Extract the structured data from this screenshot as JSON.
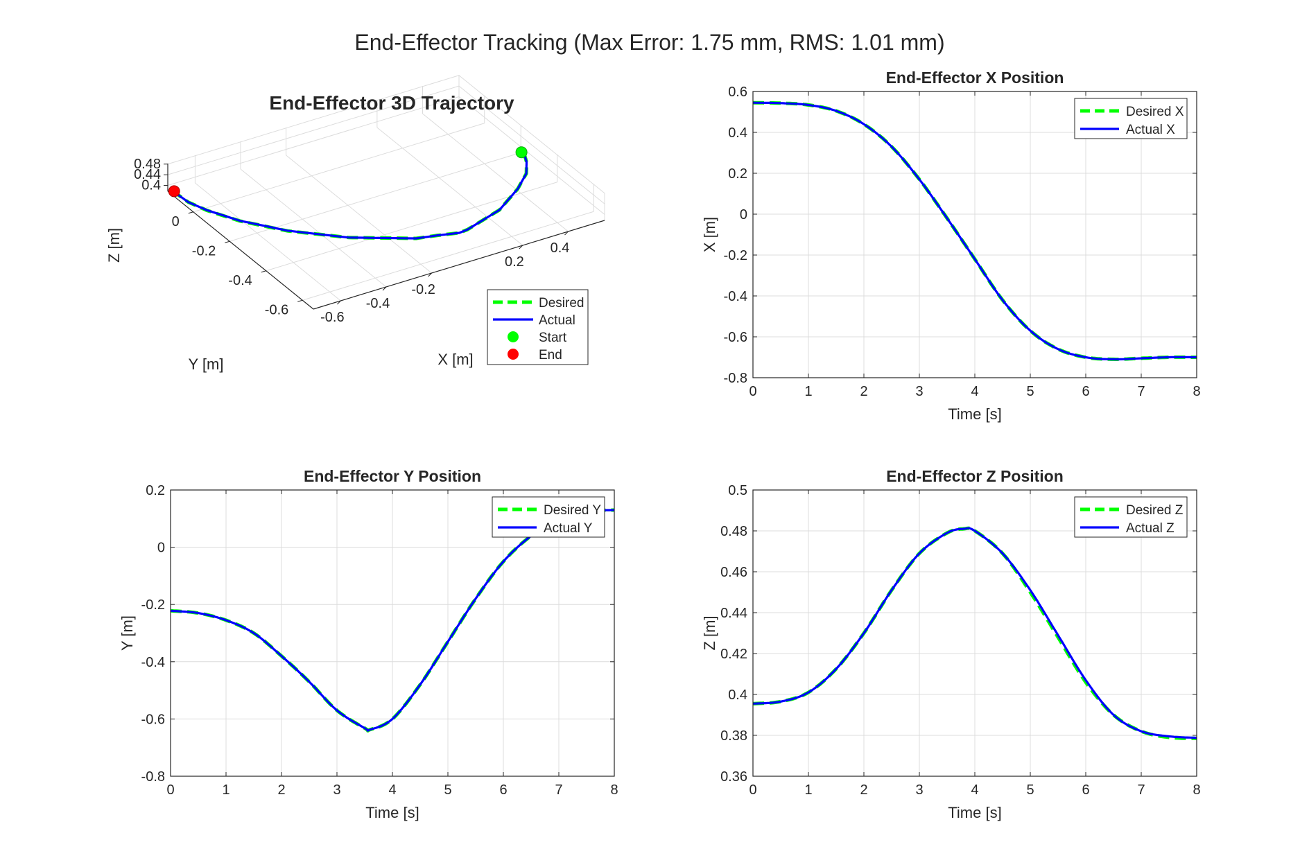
{
  "figure": {
    "suptitle": "End-Effector Tracking (Max Error: 1.75 mm, RMS: 1.01 mm)"
  },
  "colors": {
    "desired": "#00ff00",
    "actual": "#0000ff",
    "start": "#00ff00",
    "end": "#ff0000",
    "grid": "#dcdcdc",
    "axes": "#262626"
  },
  "chart_data": [
    {
      "id": "traj3d",
      "type": "line",
      "title": "End-Effector 3D Trajectory",
      "xlabel": "X [m]",
      "ylabel": "Y [m]",
      "zlabel": "Z [m]",
      "xlim": [
        -0.72,
        0.56
      ],
      "ylim": [
        -0.66,
        0.14
      ],
      "zlim": [
        0.378,
        0.482
      ],
      "xticks": [
        -0.6,
        -0.4,
        -0.2,
        0.2,
        0.4
      ],
      "xtick_labels": [
        "-0.6",
        "-0.4",
        "-0.2",
        "0.2",
        "0.4"
      ],
      "yticks": [
        -0.6,
        -0.4,
        -0.2,
        0
      ],
      "ytick_labels": [
        "-0.6",
        "-0.4",
        "-0.2",
        "0"
      ],
      "zticks": [
        0.4,
        0.44,
        0.48
      ],
      "ztick_labels": [
        "0.4",
        "0.44",
        "0.48"
      ],
      "grid": true,
      "legend": {
        "position": "bottom-right",
        "entries": [
          {
            "label": "Desired",
            "kind": "dashed-line",
            "color_key": "desired"
          },
          {
            "label": "Actual",
            "kind": "line",
            "color_key": "actual"
          },
          {
            "label": "Start",
            "kind": "marker",
            "color_key": "start"
          },
          {
            "label": "End",
            "kind": "marker",
            "color_key": "end"
          }
        ]
      }
    },
    {
      "id": "xpos",
      "type": "line",
      "title": "End-Effector X Position",
      "xlabel": "Time [s]",
      "ylabel": "X [m]",
      "xlim": [
        0,
        8
      ],
      "ylim": [
        -0.8,
        0.6
      ],
      "xticks": [
        0,
        1,
        2,
        3,
        4,
        5,
        6,
        7,
        8
      ],
      "xtick_labels": [
        "0",
        "1",
        "2",
        "3",
        "4",
        "5",
        "6",
        "7",
        "8"
      ],
      "yticks": [
        -0.8,
        -0.6,
        -0.4,
        -0.2,
        0,
        0.2,
        0.4,
        0.6
      ],
      "ytick_labels": [
        "-0.8",
        "-0.6",
        "-0.4",
        "-0.2",
        "0",
        "0.2",
        "0.4",
        "0.6"
      ],
      "grid": true,
      "legend": {
        "position": "top-right",
        "entries": [
          {
            "label": "Desired X",
            "kind": "dashed-line",
            "color_key": "desired"
          },
          {
            "label": "Actual X",
            "kind": "line",
            "color_key": "actual"
          }
        ]
      },
      "x": [
        0,
        0.5,
        1,
        1.5,
        2,
        2.5,
        3,
        3.5,
        4,
        4.5,
        5,
        5.5,
        6,
        6.5,
        7,
        7.5,
        8
      ],
      "series": [
        {
          "name": "Desired X",
          "values": [
            0.545,
            0.543,
            0.534,
            0.505,
            0.44,
            0.33,
            0.17,
            -0.02,
            -0.22,
            -0.42,
            -0.57,
            -0.66,
            -0.7,
            -0.71,
            -0.705,
            -0.7,
            -0.7
          ]
        },
        {
          "name": "Actual X",
          "values": [
            0.545,
            0.543,
            0.534,
            0.505,
            0.44,
            0.33,
            0.17,
            -0.02,
            -0.22,
            -0.42,
            -0.57,
            -0.66,
            -0.7,
            -0.71,
            -0.705,
            -0.7,
            -0.7
          ]
        }
      ]
    },
    {
      "id": "ypos",
      "type": "line",
      "title": "End-Effector Y Position",
      "xlabel": "Time [s]",
      "ylabel": "Y [m]",
      "xlim": [
        0,
        8
      ],
      "ylim": [
        -0.8,
        0.2
      ],
      "xticks": [
        0,
        1,
        2,
        3,
        4,
        5,
        6,
        7,
        8
      ],
      "xtick_labels": [
        "0",
        "1",
        "2",
        "3",
        "4",
        "5",
        "6",
        "7",
        "8"
      ],
      "yticks": [
        -0.8,
        -0.6,
        -0.4,
        -0.2,
        0,
        0.2
      ],
      "ytick_labels": [
        "-0.8",
        "-0.6",
        "-0.4",
        "-0.2",
        "0",
        "0.2"
      ],
      "grid": true,
      "legend": {
        "position": "top-right",
        "entries": [
          {
            "label": "Desired Y",
            "kind": "dashed-line",
            "color_key": "desired"
          },
          {
            "label": "Actual Y",
            "kind": "line",
            "color_key": "actual"
          }
        ]
      },
      "x": [
        0,
        0.5,
        1,
        1.5,
        2,
        2.5,
        3,
        3.5,
        3.6,
        4,
        4.5,
        5,
        5.5,
        6,
        6.5,
        7,
        7.5,
        8
      ],
      "series": [
        {
          "name": "Desired Y",
          "values": [
            -0.222,
            -0.23,
            -0.255,
            -0.3,
            -0.38,
            -0.47,
            -0.57,
            -0.632,
            -0.637,
            -0.6,
            -0.48,
            -0.33,
            -0.18,
            -0.05,
            0.04,
            0.1,
            0.125,
            0.13
          ]
        },
        {
          "name": "Actual Y",
          "values": [
            -0.222,
            -0.23,
            -0.255,
            -0.3,
            -0.38,
            -0.47,
            -0.57,
            -0.632,
            -0.637,
            -0.6,
            -0.48,
            -0.33,
            -0.18,
            -0.05,
            0.04,
            0.1,
            0.125,
            0.13
          ]
        }
      ]
    },
    {
      "id": "zpos",
      "type": "line",
      "title": "End-Effector Z Position",
      "xlabel": "Time [s]",
      "ylabel": "Z [m]",
      "xlim": [
        0,
        8
      ],
      "ylim": [
        0.36,
        0.5
      ],
      "xticks": [
        0,
        1,
        2,
        3,
        4,
        5,
        6,
        7,
        8
      ],
      "xtick_labels": [
        "0",
        "1",
        "2",
        "3",
        "4",
        "5",
        "6",
        "7",
        "8"
      ],
      "yticks": [
        0.36,
        0.38,
        0.4,
        0.42,
        0.44,
        0.46,
        0.48,
        0.5
      ],
      "ytick_labels": [
        "0.36",
        "0.38",
        "0.4",
        "0.42",
        "0.44",
        "0.46",
        "0.48",
        "0.5"
      ],
      "grid": true,
      "legend": {
        "position": "top-right",
        "entries": [
          {
            "label": "Desired Z",
            "kind": "dashed-line",
            "color_key": "desired"
          },
          {
            "label": "Actual Z",
            "kind": "line",
            "color_key": "actual"
          }
        ]
      },
      "x": [
        0,
        0.5,
        1,
        1.5,
        2,
        2.5,
        3,
        3.5,
        3.8,
        4,
        4.5,
        5,
        5.5,
        6,
        6.5,
        7,
        7.5,
        8
      ],
      "series": [
        {
          "name": "Desired Z",
          "values": [
            0.3955,
            0.3965,
            0.401,
            0.4125,
            0.43,
            0.451,
            0.469,
            0.479,
            0.481,
            0.48,
            0.469,
            0.45,
            0.428,
            0.406,
            0.39,
            0.382,
            0.379,
            0.3785
          ]
        },
        {
          "name": "Actual Z",
          "values": [
            0.3955,
            0.3965,
            0.401,
            0.4125,
            0.43,
            0.451,
            0.469,
            0.479,
            0.481,
            0.48,
            0.469,
            0.451,
            0.429,
            0.407,
            0.39,
            0.382,
            0.3795,
            0.3788
          ]
        }
      ]
    }
  ]
}
